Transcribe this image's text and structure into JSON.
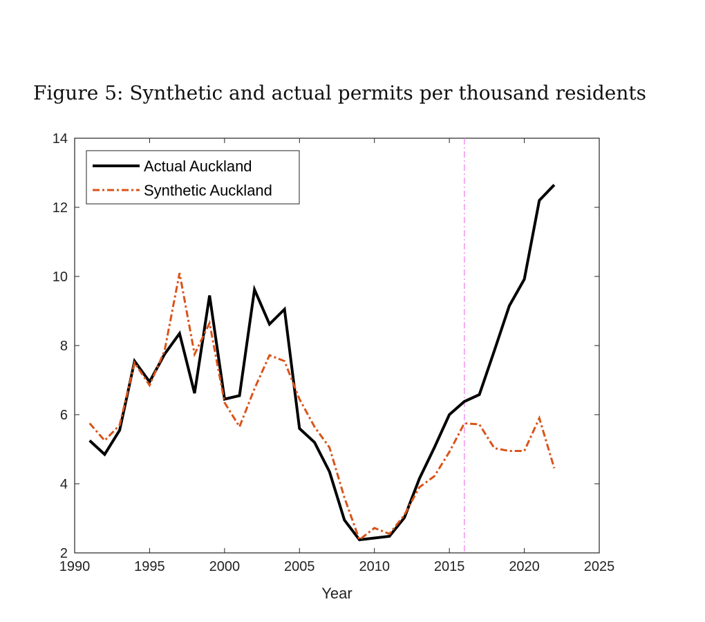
{
  "caption": "Figure 5: Synthetic and actual permits per thousand residents",
  "chart_data": {
    "type": "line",
    "title": "Figure 5: Synthetic and actual permits per thousand residents",
    "xlabel": "Year",
    "ylabel": "",
    "xlim": [
      1990,
      2025
    ],
    "ylim": [
      2,
      14
    ],
    "xticks": [
      1990,
      1995,
      2000,
      2005,
      2010,
      2015,
      2020,
      2025
    ],
    "yticks": [
      2,
      4,
      6,
      8,
      10,
      12,
      14
    ],
    "grid": false,
    "legend_position": "top-left",
    "x": [
      1991,
      1992,
      1993,
      1994,
      1995,
      1996,
      1997,
      1998,
      1999,
      2000,
      2001,
      2002,
      2003,
      2004,
      2005,
      2006,
      2007,
      2008,
      2009,
      2010,
      2011,
      2012,
      2013,
      2014,
      2015,
      2016,
      2017,
      2018,
      2019,
      2020,
      2021,
      2022
    ],
    "series": [
      {
        "name": "Actual Auckland",
        "color": "#000000",
        "style": "solid",
        "values": [
          5.25,
          4.85,
          5.55,
          7.55,
          6.95,
          7.75,
          8.35,
          6.62,
          9.45,
          6.45,
          6.55,
          9.62,
          8.62,
          9.05,
          5.6,
          5.2,
          4.35,
          2.95,
          2.38,
          2.43,
          2.48,
          3.02,
          4.15,
          5.05,
          6.0,
          6.38,
          6.58,
          7.85,
          9.15,
          9.92,
          12.2,
          12.65
        ]
      },
      {
        "name": "Synthetic Auckland",
        "color": "#d95319",
        "style": "dashdot",
        "values": [
          5.75,
          5.25,
          5.7,
          7.5,
          6.85,
          7.85,
          10.1,
          7.75,
          8.65,
          6.35,
          5.65,
          6.75,
          7.72,
          7.55,
          6.45,
          5.65,
          5.05,
          3.6,
          2.38,
          2.72,
          2.55,
          3.1,
          3.9,
          4.22,
          4.92,
          5.75,
          5.72,
          5.03,
          4.95,
          4.95,
          5.9,
          4.45
        ]
      }
    ],
    "vline": {
      "x": 2016,
      "color": "#ee82ee",
      "style": "dashdot"
    }
  }
}
